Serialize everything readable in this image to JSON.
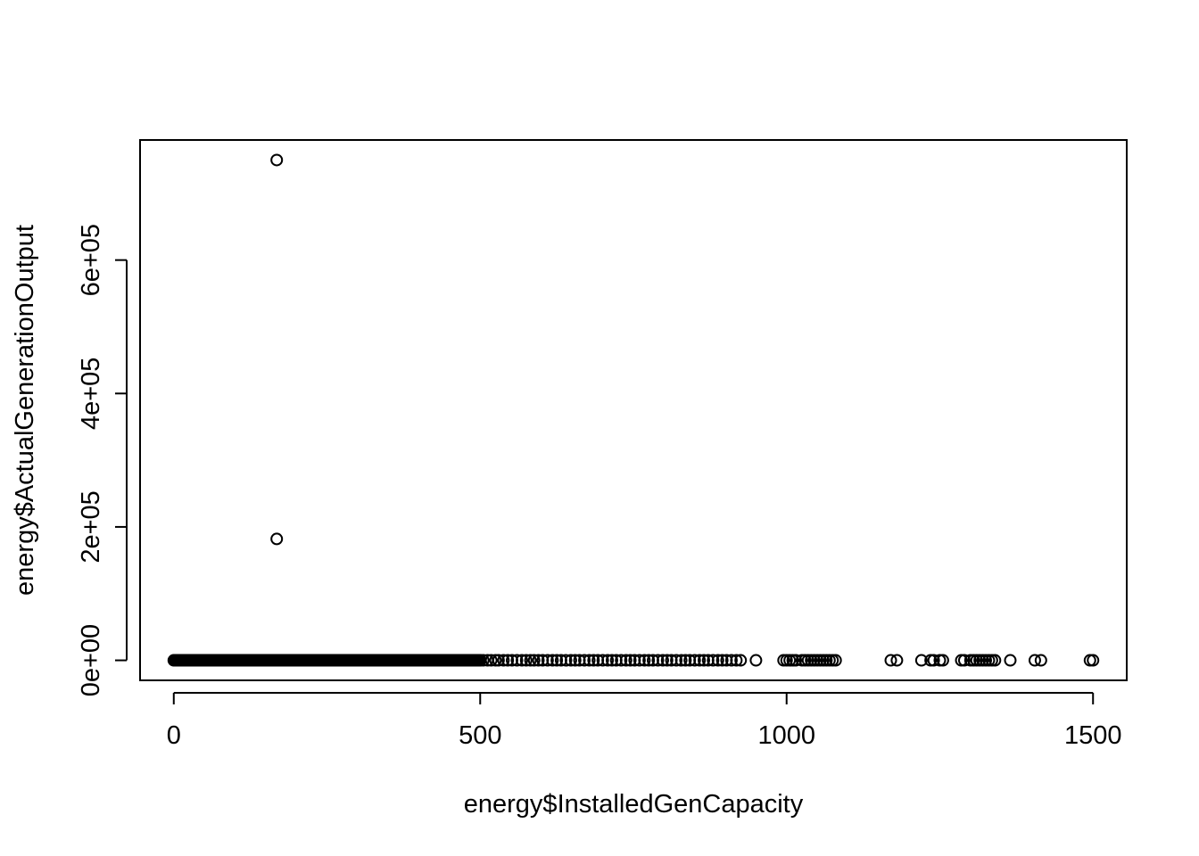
{
  "chart_data": {
    "type": "scatter",
    "title": "",
    "xlabel": "energy$InstalledGenCapacity",
    "ylabel": "energy$ActualGenerationOutput",
    "xlim": [
      -55,
      1555
    ],
    "ylim": [
      -30000,
      780000
    ],
    "x_ticks": [
      0,
      500,
      1000,
      1500
    ],
    "x_tick_labels": [
      "0",
      "500",
      "1000",
      "1500"
    ],
    "y_ticks": [
      0,
      200000,
      400000,
      600000
    ],
    "y_tick_labels": [
      "0e+00",
      "2e+05",
      "4e+05",
      "6e+05"
    ],
    "grid": false,
    "legend": "none",
    "marker": "open-circle",
    "outliers": [
      {
        "x": 168,
        "y": 750000
      },
      {
        "x": 168,
        "y": 182000
      }
    ],
    "dense_run": {
      "x_from": 0,
      "x_to": 500,
      "step": 1.5,
      "y": 0
    },
    "sparse_x": [
      500,
      505,
      512,
      518,
      525,
      530,
      538,
      545,
      552,
      560,
      568,
      575,
      582,
      588,
      595,
      602,
      610,
      618,
      625,
      632,
      640,
      648,
      655,
      662,
      670,
      678,
      685,
      692,
      700,
      708,
      715,
      722,
      730,
      738,
      745,
      752,
      760,
      768,
      775,
      782,
      790,
      798,
      805,
      812,
      820,
      828,
      835,
      842,
      850,
      858,
      865,
      872,
      880,
      888,
      895,
      902,
      910,
      918,
      925,
      950,
      995,
      1000,
      1005,
      1010,
      1015,
      1025,
      1030,
      1035,
      1040,
      1045,
      1050,
      1055,
      1060,
      1065,
      1070,
      1075,
      1080,
      1170,
      1180,
      1220,
      1235,
      1240,
      1250,
      1255,
      1285,
      1290,
      1300,
      1305,
      1310,
      1315,
      1320,
      1325,
      1330,
      1335,
      1340,
      1365,
      1405,
      1415,
      1495,
      1500
    ],
    "sparse_y": 0
  }
}
